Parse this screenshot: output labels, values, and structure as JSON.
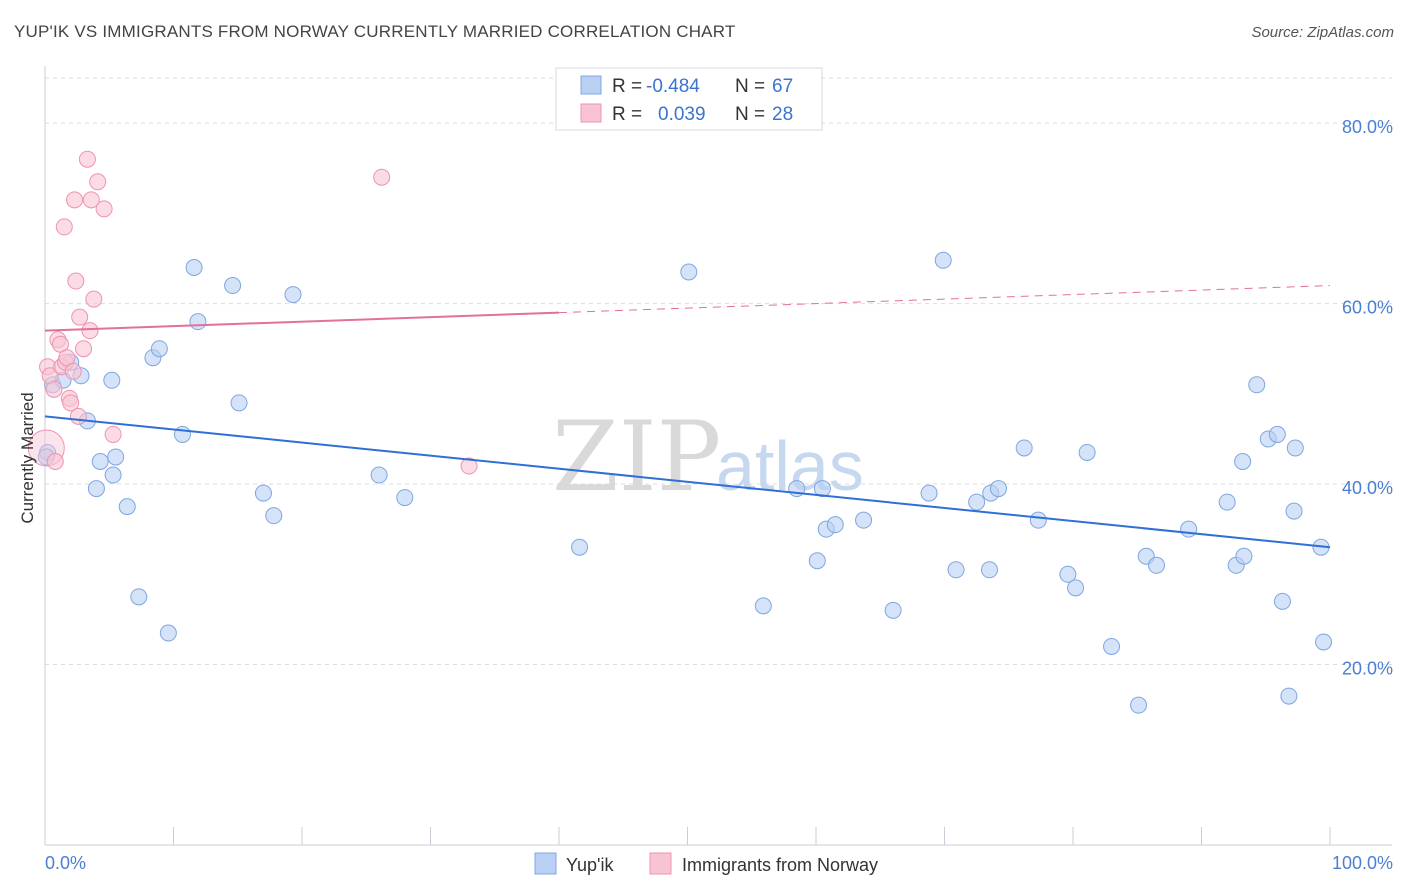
{
  "title": "YUP'IK VS IMMIGRANTS FROM NORWAY CURRENTLY MARRIED CORRELATION CHART",
  "source": "Source: ZipAtlas.com",
  "watermark": {
    "zip": "ZIP",
    "atlas": "atlas"
  },
  "colors": {
    "blue_fill": "#b8d0f3",
    "blue_stroke": "#7fa6e0",
    "blue_line": "#2f6fd6",
    "pink_fill": "#f8c4d4",
    "pink_stroke": "#ee93b0",
    "pink_line": "#e2709a",
    "grid": "#d8dde6",
    "axis_text": "#4a7fd4"
  },
  "stats_legend": [
    {
      "r_label": "R =",
      "r_value": "-0.484",
      "n_label": "N =",
      "n_value": "67"
    },
    {
      "r_label": "R =",
      "r_value": "0.039",
      "n_label": "N =",
      "n_value": "28"
    }
  ],
  "chart_data": {
    "type": "scatter",
    "title": "YUP'IK VS IMMIGRANTS FROM NORWAY CURRENTLY MARRIED CORRELATION CHART",
    "xlabel": "",
    "ylabel": "Currently Married",
    "xlim": [
      0,
      100
    ],
    "ylim": [
      0,
      85
    ],
    "x_tick_labels": [
      "0.0%",
      "100.0%"
    ],
    "y_ticks": [
      20,
      40,
      60,
      80
    ],
    "y_tick_labels": [
      "20.0%",
      "40.0%",
      "60.0%",
      "80.0%"
    ],
    "grid": true,
    "legend": "bottom-center",
    "series": [
      {
        "name": "Yup'ik",
        "color": "#b8d0f3",
        "points": [
          [
            0.2,
            43.5
          ],
          [
            0.6,
            51.0
          ],
          [
            1.4,
            51.5
          ],
          [
            2.0,
            53.5
          ],
          [
            2.8,
            52.0
          ],
          [
            3.3,
            47.0
          ],
          [
            4.0,
            39.5
          ],
          [
            4.3,
            42.5
          ],
          [
            5.2,
            51.5
          ],
          [
            5.3,
            41.0
          ],
          [
            5.5,
            43.0
          ],
          [
            6.4,
            37.5
          ],
          [
            7.3,
            27.5
          ],
          [
            8.4,
            54.0
          ],
          [
            8.9,
            55.0
          ],
          [
            9.6,
            23.5
          ],
          [
            10.7,
            45.5
          ],
          [
            11.6,
            64.0
          ],
          [
            11.9,
            58.0
          ],
          [
            14.6,
            62.0
          ],
          [
            15.1,
            49.0
          ],
          [
            17.0,
            39.0
          ],
          [
            17.8,
            36.5
          ],
          [
            19.3,
            61.0
          ],
          [
            26.0,
            41.0
          ],
          [
            28.0,
            38.5
          ],
          [
            41.6,
            33.0
          ],
          [
            50.1,
            63.5
          ],
          [
            55.9,
            26.5
          ],
          [
            58.5,
            39.5
          ],
          [
            60.1,
            31.5
          ],
          [
            60.5,
            39.5
          ],
          [
            60.8,
            35.0
          ],
          [
            61.5,
            35.5
          ],
          [
            63.7,
            36.0
          ],
          [
            66.0,
            26.0
          ],
          [
            68.8,
            39.0
          ],
          [
            69.9,
            64.8
          ],
          [
            70.9,
            30.5
          ],
          [
            72.5,
            38.0
          ],
          [
            73.5,
            30.5
          ],
          [
            73.6,
            39.0
          ],
          [
            74.2,
            39.5
          ],
          [
            76.2,
            44.0
          ],
          [
            77.3,
            36.0
          ],
          [
            79.6,
            30.0
          ],
          [
            80.2,
            28.5
          ],
          [
            81.1,
            43.5
          ],
          [
            83.0,
            22.0
          ],
          [
            85.1,
            15.5
          ],
          [
            85.7,
            32.0
          ],
          [
            86.5,
            31.0
          ],
          [
            89.0,
            35.0
          ],
          [
            92.0,
            38.0
          ],
          [
            92.7,
            31.0
          ],
          [
            93.2,
            42.5
          ],
          [
            93.3,
            32.0
          ],
          [
            94.3,
            51.0
          ],
          [
            95.2,
            45.0
          ],
          [
            95.9,
            45.5
          ],
          [
            96.3,
            27.0
          ],
          [
            96.8,
            16.5
          ],
          [
            97.2,
            37.0
          ],
          [
            97.3,
            44.0
          ],
          [
            99.3,
            33.0
          ],
          [
            99.5,
            22.5
          ],
          [
            0.1,
            43.0
          ]
        ]
      },
      {
        "name": "Immigrants from Norway",
        "color": "#f8c4d4",
        "points": [
          [
            0.1,
            44.0
          ],
          [
            0.2,
            53.0
          ],
          [
            0.4,
            52.0
          ],
          [
            0.7,
            50.5
          ],
          [
            0.8,
            42.5
          ],
          [
            1.0,
            56.0
          ],
          [
            1.2,
            55.5
          ],
          [
            1.3,
            53.0
          ],
          [
            1.5,
            68.5
          ],
          [
            1.6,
            53.5
          ],
          [
            1.7,
            54.0
          ],
          [
            1.9,
            49.5
          ],
          [
            2.0,
            49.0
          ],
          [
            2.2,
            52.5
          ],
          [
            2.3,
            71.5
          ],
          [
            2.4,
            62.5
          ],
          [
            2.6,
            47.5
          ],
          [
            2.7,
            58.5
          ],
          [
            3.0,
            55.0
          ],
          [
            3.3,
            76.0
          ],
          [
            3.5,
            57.0
          ],
          [
            3.6,
            71.5
          ],
          [
            3.8,
            60.5
          ],
          [
            4.1,
            73.5
          ],
          [
            4.6,
            70.5
          ],
          [
            5.3,
            45.5
          ],
          [
            26.2,
            74.0
          ],
          [
            33.0,
            42.0
          ]
        ]
      }
    ],
    "trend_lines": [
      {
        "series": "Yup'ik",
        "x": [
          0,
          100
        ],
        "y": [
          47.5,
          33.0
        ],
        "style": "solid"
      },
      {
        "series": "Immigrants from Norway",
        "x": [
          0,
          40
        ],
        "y": [
          57.0,
          59.0
        ],
        "style": "solid"
      },
      {
        "series": "Immigrants from Norway",
        "x": [
          40,
          100
        ],
        "y": [
          59.0,
          62.0
        ],
        "style": "dashed"
      }
    ]
  }
}
